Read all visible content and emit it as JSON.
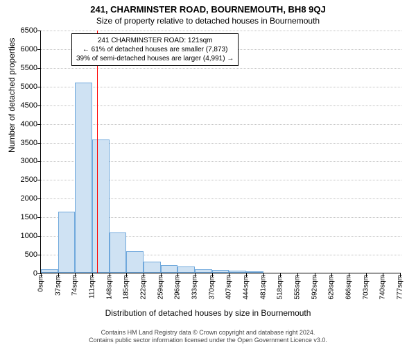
{
  "title": "241, CHARMINSTER ROAD, BOURNEMOUTH, BH8 9QJ",
  "subtitle": "Size of property relative to detached houses in Bournemouth",
  "ylabel": "Number of detached properties",
  "xlabel": "Distribution of detached houses by size in Bournemouth",
  "chart": {
    "type": "histogram",
    "background_color": "#ffffff",
    "grid_color": "#c0c0c0",
    "axis_color": "#000000",
    "bar_fill": "#cfe2f3",
    "bar_stroke": "#6fa8dc",
    "bar_stroke_width": 1,
    "ylim": [
      0,
      6500
    ],
    "ytick_step": 500,
    "xlim_sqm": [
      0,
      780
    ],
    "xtick_step_sqm": 37,
    "xtick_suffix": "sqm",
    "bin_width_sqm": 37,
    "values": [
      90,
      1640,
      5080,
      3560,
      1080,
      580,
      300,
      200,
      160,
      100,
      80,
      60,
      40,
      0,
      0,
      0,
      0,
      0,
      0,
      0,
      0
    ],
    "marker": {
      "value_sqm": 121,
      "color": "#ff0000"
    },
    "annotation": {
      "lines": [
        "241 CHARMINSTER ROAD: 121sqm",
        "← 61% of detached houses are smaller (7,873)",
        "39% of semi-detached houses are larger (4,991) →"
      ],
      "border_color": "#000000",
      "bg_color": "#ffffff",
      "font_size": 10
    },
    "tick_fontsize": 11,
    "label_fontsize": 12,
    "title_fontsize": 13
  },
  "footer": {
    "line1": "Contains HM Land Registry data © Crown copyright and database right 2024.",
    "line2": "Contains public sector information licensed under the Open Government Licence v3.0."
  }
}
